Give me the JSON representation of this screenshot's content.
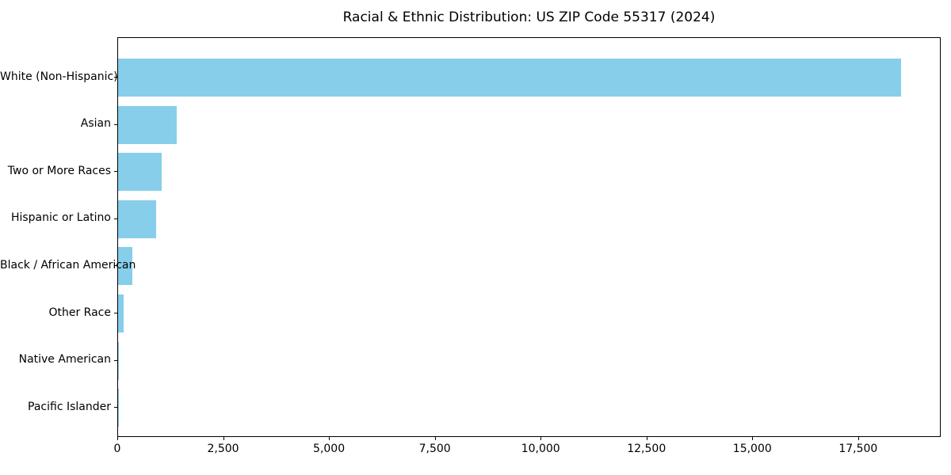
{
  "chart_data": {
    "type": "bar",
    "orientation": "horizontal",
    "title": "Racial & Ethnic Distribution: US ZIP Code 55317 (2024)",
    "categories": [
      "White (Non-Hispanic)",
      "Asian",
      "Two or More Races",
      "Hispanic or Latino",
      "Black / African American",
      "Other Race",
      "Native American",
      "Pacific Islander"
    ],
    "values": [
      18500,
      1390,
      1030,
      900,
      330,
      130,
      25,
      5
    ],
    "xlabel": "",
    "ylabel": "",
    "xlim": [
      0,
      19450
    ],
    "x_ticks": [
      0,
      2500,
      5000,
      7500,
      10000,
      12500,
      15000,
      17500
    ],
    "x_tick_labels": [
      "0",
      "2,500",
      "5,000",
      "7,500",
      "10,000",
      "12,500",
      "15,000",
      "17,500"
    ],
    "grid": "off",
    "legend": "none",
    "bar_color": "#87CEEB",
    "spine_color": "#000000",
    "text_color": "#000000",
    "background_color": "#FFFFFF"
  }
}
